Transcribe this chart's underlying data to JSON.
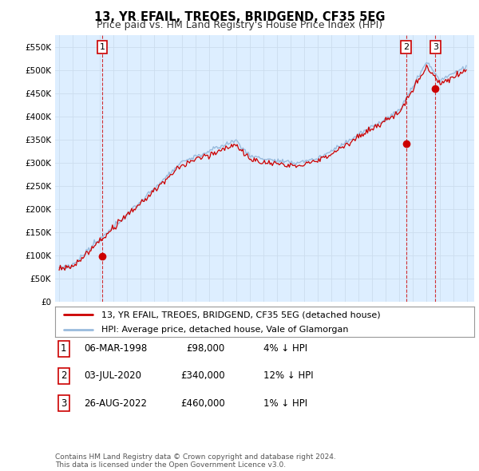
{
  "title": "13, YR EFAIL, TREOES, BRIDGEND, CF35 5EG",
  "subtitle": "Price paid vs. HM Land Registry's House Price Index (HPI)",
  "ylabel_ticks": [
    "£0",
    "£50K",
    "£100K",
    "£150K",
    "£200K",
    "£250K",
    "£300K",
    "£350K",
    "£400K",
    "£450K",
    "£500K",
    "£550K"
  ],
  "ytick_vals": [
    0,
    50000,
    100000,
    150000,
    200000,
    250000,
    300000,
    350000,
    400000,
    450000,
    500000,
    550000
  ],
  "ylim": [
    0,
    575000
  ],
  "xlim_start": 1994.7,
  "xlim_end": 2025.5,
  "red_line_color": "#cc0000",
  "blue_line_color": "#99bbdd",
  "grid_color": "#ccddee",
  "bg_color": "#ddeeff",
  "chart_bg": "#ddeeff",
  "outer_bg": "#ffffff",
  "sale_points": [
    {
      "year": 1998.17,
      "price": 98000,
      "label": "1"
    },
    {
      "year": 2020.5,
      "price": 340000,
      "label": "2"
    },
    {
      "year": 2022.65,
      "price": 460000,
      "label": "3"
    }
  ],
  "legend_entries": [
    {
      "color": "#cc0000",
      "label": "13, YR EFAIL, TREOES, BRIDGEND, CF35 5EG (detached house)"
    },
    {
      "color": "#99bbdd",
      "label": "HPI: Average price, detached house, Vale of Glamorgan"
    }
  ],
  "table_rows": [
    {
      "num": "1",
      "date": "06-MAR-1998",
      "price": "£98,000",
      "hpi": "4% ↓ HPI"
    },
    {
      "num": "2",
      "date": "03-JUL-2020",
      "price": "£340,000",
      "hpi": "12% ↓ HPI"
    },
    {
      "num": "3",
      "date": "26-AUG-2022",
      "price": "£460,000",
      "hpi": "1% ↓ HPI"
    }
  ],
  "footnote": "Contains HM Land Registry data © Crown copyright and database right 2024.\nThis data is licensed under the Open Government Licence v3.0.",
  "title_fontsize": 10.5,
  "subtitle_fontsize": 9,
  "tick_fontsize": 7.5,
  "label_box_color": "#cc0000"
}
